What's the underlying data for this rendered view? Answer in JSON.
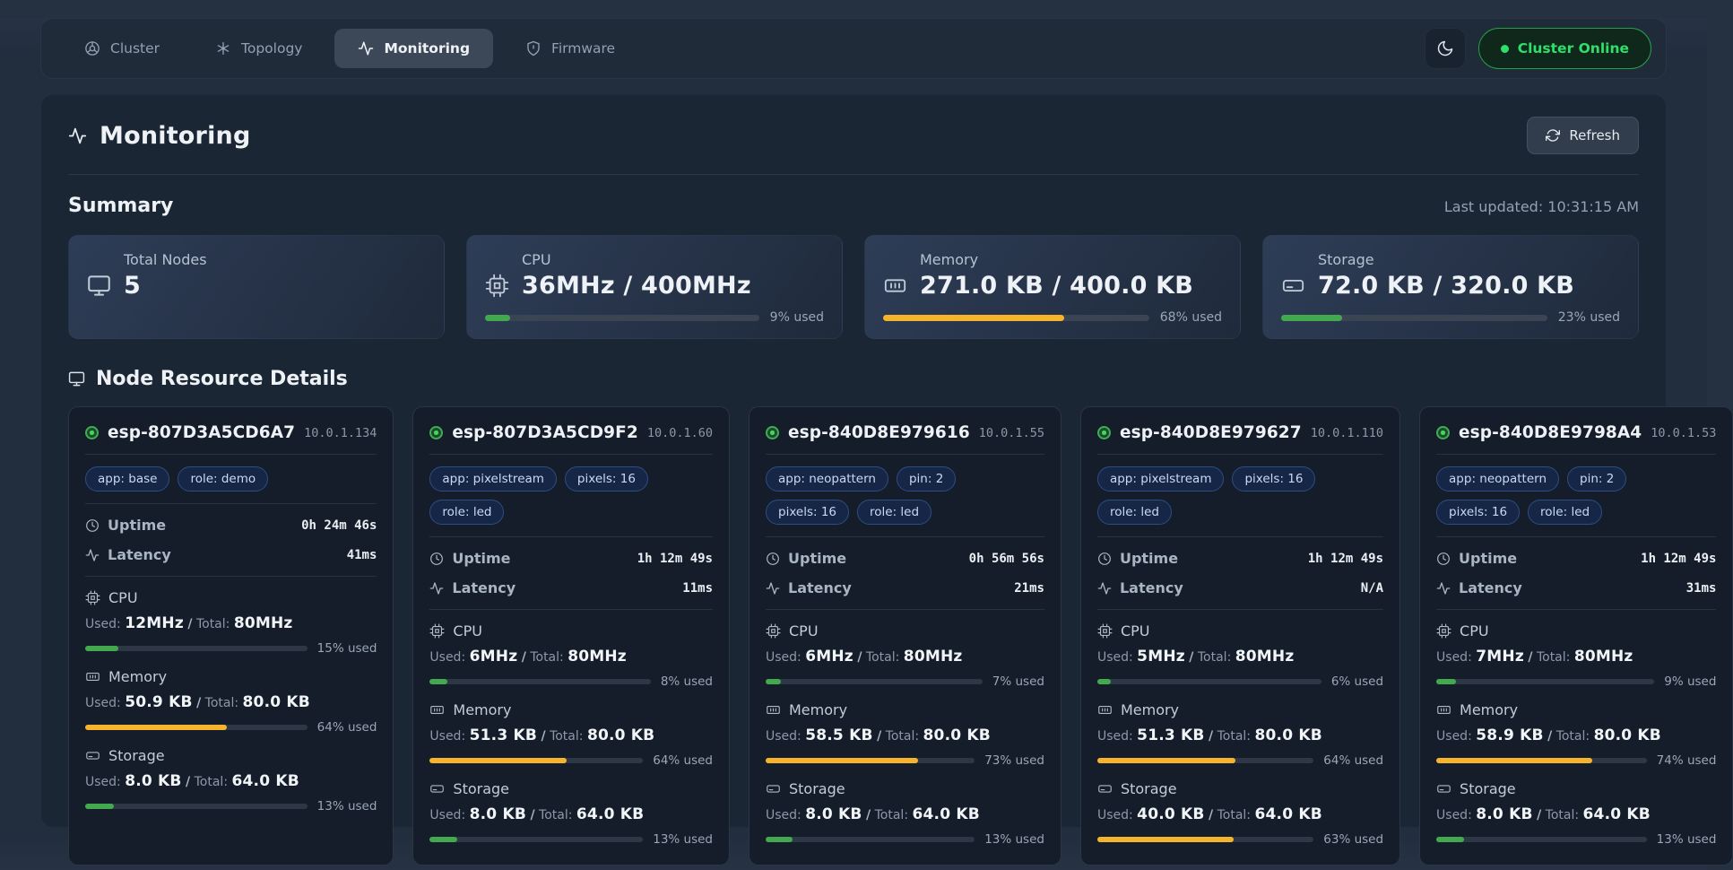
{
  "nav": {
    "tabs": [
      {
        "label": "Cluster",
        "icon": "cluster-icon",
        "active": false
      },
      {
        "label": "Topology",
        "icon": "topology-icon",
        "active": false
      },
      {
        "label": "Monitoring",
        "icon": "activity-icon",
        "active": true
      },
      {
        "label": "Firmware",
        "icon": "shield-icon",
        "active": false
      }
    ],
    "theme_toggle_icon": "moon-icon",
    "status_badge": "Cluster Online"
  },
  "page": {
    "title": "Monitoring",
    "refresh_label": "Refresh"
  },
  "summary": {
    "heading": "Summary",
    "last_updated": "Last updated: 10:31:15 AM",
    "cards": [
      {
        "label": "Total Nodes",
        "value": "5",
        "icon": "monitor-icon"
      },
      {
        "label": "CPU",
        "value": "36MHz / 400MHz",
        "icon": "cpu-icon",
        "percent": 9,
        "percent_label": "9% used",
        "color": "green"
      },
      {
        "label": "Memory",
        "value": "271.0 KB / 400.0 KB",
        "icon": "memory-icon",
        "percent": 68,
        "percent_label": "68% used",
        "color": "amber"
      },
      {
        "label": "Storage",
        "value": "72.0 KB / 320.0 KB",
        "icon": "harddrive-icon",
        "percent": 23,
        "percent_label": "23% used",
        "color": "green"
      }
    ]
  },
  "nodes": {
    "heading": "Node Resource Details",
    "labels": {
      "uptime": "Uptime",
      "latency": "Latency",
      "cpu": "CPU",
      "memory": "Memory",
      "storage": "Storage",
      "used": "Used:",
      "total": "Total:",
      "slash": "/"
    },
    "cards": [
      {
        "name": "esp-807D3A5CD6A7",
        "ip": "10.0.1.134",
        "tags": [
          "app: base",
          "role: demo"
        ],
        "uptime": "0h 24m 46s",
        "latency": "41ms",
        "cpu": {
          "used": "12MHz",
          "total": "80MHz",
          "percent": 15,
          "label": "15% used",
          "color": "green"
        },
        "memory": {
          "used": "50.9 KB",
          "total": "80.0 KB",
          "percent": 64,
          "label": "64% used",
          "color": "amber"
        },
        "storage": {
          "used": "8.0 KB",
          "total": "64.0 KB",
          "percent": 13,
          "label": "13% used",
          "color": "green"
        }
      },
      {
        "name": "esp-807D3A5CD9F2",
        "ip": "10.0.1.60",
        "tags": [
          "app: pixelstream",
          "pixels: 16",
          "role: led"
        ],
        "uptime": "1h 12m 49s",
        "latency": "11ms",
        "cpu": {
          "used": "6MHz",
          "total": "80MHz",
          "percent": 8,
          "label": "8% used",
          "color": "green"
        },
        "memory": {
          "used": "51.3 KB",
          "total": "80.0 KB",
          "percent": 64,
          "label": "64% used",
          "color": "amber"
        },
        "storage": {
          "used": "8.0 KB",
          "total": "64.0 KB",
          "percent": 13,
          "label": "13% used",
          "color": "green"
        }
      },
      {
        "name": "esp-840D8E979616",
        "ip": "10.0.1.55",
        "tags": [
          "app: neopattern",
          "pin: 2",
          "pixels: 16",
          "role: led"
        ],
        "uptime": "0h 56m 56s",
        "latency": "21ms",
        "cpu": {
          "used": "6MHz",
          "total": "80MHz",
          "percent": 7,
          "label": "7% used",
          "color": "green"
        },
        "memory": {
          "used": "58.5 KB",
          "total": "80.0 KB",
          "percent": 73,
          "label": "73% used",
          "color": "amber"
        },
        "storage": {
          "used": "8.0 KB",
          "total": "64.0 KB",
          "percent": 13,
          "label": "13% used",
          "color": "green"
        }
      },
      {
        "name": "esp-840D8E979627",
        "ip": "10.0.1.110",
        "tags": [
          "app: pixelstream",
          "pixels: 16",
          "role: led"
        ],
        "uptime": "1h 12m 49s",
        "latency": "N/A",
        "cpu": {
          "used": "5MHz",
          "total": "80MHz",
          "percent": 6,
          "label": "6% used",
          "color": "green"
        },
        "memory": {
          "used": "51.3 KB",
          "total": "80.0 KB",
          "percent": 64,
          "label": "64% used",
          "color": "amber"
        },
        "storage": {
          "used": "40.0 KB",
          "total": "64.0 KB",
          "percent": 63,
          "label": "63% used",
          "color": "amber"
        }
      },
      {
        "name": "esp-840D8E9798A4",
        "ip": "10.0.1.53",
        "tags": [
          "app: neopattern",
          "pin: 2",
          "pixels: 16",
          "role: led"
        ],
        "uptime": "1h 12m 49s",
        "latency": "31ms",
        "cpu": {
          "used": "7MHz",
          "total": "80MHz",
          "percent": 9,
          "label": "9% used",
          "color": "green"
        },
        "memory": {
          "used": "58.9 KB",
          "total": "80.0 KB",
          "percent": 74,
          "label": "74% used",
          "color": "amber"
        },
        "storage": {
          "used": "8.0 KB",
          "total": "64.0 KB",
          "percent": 13,
          "label": "13% used",
          "color": "green"
        }
      }
    ]
  }
}
